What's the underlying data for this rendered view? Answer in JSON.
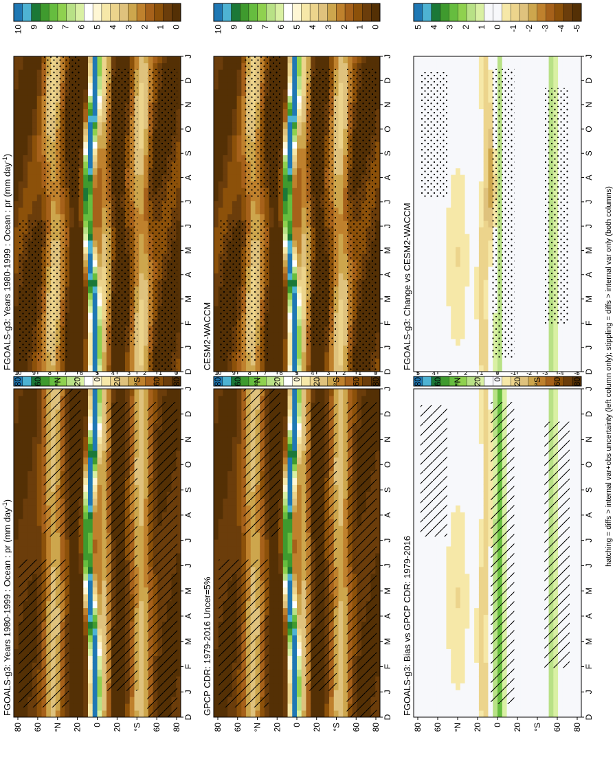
{
  "figure": {
    "footnote": "hatching = diffs > internal var+obs uncertainty (left column only); stippling = diffs > internal var only (both columns)"
  },
  "chart_data": [
    {
      "type": "heatmap",
      "panel": "left-top",
      "title": "FGOALS-g3: Years 1980-1999 : Ocean : pr",
      "title_units": "(mm day",
      "title_exp": "-1",
      "title_close": ")",
      "month_labels": [
        "D",
        "J",
        "F",
        "M",
        "A",
        "M",
        "J",
        "J",
        "A",
        "S",
        "O",
        "N",
        "D",
        "J"
      ],
      "lat_labels": [
        "80",
        "60",
        "°N",
        "20",
        "0",
        "20",
        "°S",
        "60",
        "80"
      ],
      "colorbar_labels": [
        "10",
        "9",
        "8",
        "7",
        "6",
        "5",
        "4",
        "3",
        "2",
        "1",
        "0"
      ],
      "colorbar_colors": [
        "#1f78b4",
        "#4eb3d3",
        "#1b7837",
        "#3f9a2e",
        "#66bd3f",
        "#8fd14f",
        "#b8e186",
        "#d9f0a3",
        "#ffffff",
        "#fff7d5",
        "#f6e8a8",
        "#ecd48c",
        "#dfc27d",
        "#cda64d",
        "#bf812d",
        "#a6611a",
        "#8c510a",
        "#6b3d0b",
        "#543005"
      ],
      "pattern": "hatch"
    },
    {
      "type": "heatmap",
      "panel": "right-top",
      "title": "FGOALS-g3: Years 1980-1999 : Ocean : pr",
      "title_units": "(mm day",
      "title_exp": "-1",
      "title_close": ")",
      "month_labels": [
        "D",
        "J",
        "F",
        "M",
        "A",
        "M",
        "J",
        "J",
        "A",
        "S",
        "O",
        "N",
        "D",
        "J"
      ],
      "lat_labels": [
        "80",
        "60",
        "°N",
        "20",
        "0",
        "20",
        "°S",
        "60",
        "80"
      ],
      "colorbar_labels": [
        "10",
        "9",
        "8",
        "7",
        "6",
        "5",
        "4",
        "3",
        "2",
        "1",
        "0"
      ],
      "colorbar_colors": [
        "#1f78b4",
        "#4eb3d3",
        "#1b7837",
        "#3f9a2e",
        "#66bd3f",
        "#8fd14f",
        "#b8e186",
        "#d9f0a3",
        "#ffffff",
        "#fff7d5",
        "#f6e8a8",
        "#ecd48c",
        "#dfc27d",
        "#cda64d",
        "#bf812d",
        "#a6611a",
        "#8c510a",
        "#6b3d0b",
        "#543005"
      ],
      "pattern": "stipple"
    },
    {
      "type": "heatmap",
      "panel": "left-middle",
      "title": "GPCP CDR: 1979-2016 Uncer=5%",
      "month_labels": [
        "D",
        "J",
        "F",
        "M",
        "A",
        "M",
        "J",
        "J",
        "A",
        "S",
        "O",
        "N",
        "D",
        "J"
      ],
      "lat_labels": [
        "80",
        "60",
        "°N",
        "20",
        "0",
        "20",
        "°S",
        "60",
        "80"
      ],
      "colorbar_labels": [
        "10",
        "9",
        "8",
        "7",
        "6",
        "5",
        "4",
        "3",
        "2",
        "1",
        "0"
      ],
      "colorbar_colors": [
        "#1f78b4",
        "#4eb3d3",
        "#1b7837",
        "#3f9a2e",
        "#66bd3f",
        "#8fd14f",
        "#b8e186",
        "#d9f0a3",
        "#ffffff",
        "#fff7d5",
        "#f6e8a8",
        "#ecd48c",
        "#dfc27d",
        "#cda64d",
        "#bf812d",
        "#a6611a",
        "#8c510a",
        "#6b3d0b",
        "#543005"
      ],
      "pattern": "hatch"
    },
    {
      "type": "heatmap",
      "panel": "right-middle",
      "title": "CESM2-WACCM",
      "month_labels": [
        "D",
        "J",
        "F",
        "M",
        "A",
        "M",
        "J",
        "J",
        "A",
        "S",
        "O",
        "N",
        "D",
        "J"
      ],
      "lat_labels": [
        "80",
        "60",
        "°N",
        "20",
        "0",
        "20",
        "°S",
        "60",
        "80"
      ],
      "colorbar_labels": [
        "10",
        "9",
        "8",
        "7",
        "6",
        "5",
        "4",
        "3",
        "2",
        "1",
        "0"
      ],
      "colorbar_colors": [
        "#1f78b4",
        "#4eb3d3",
        "#1b7837",
        "#3f9a2e",
        "#66bd3f",
        "#8fd14f",
        "#b8e186",
        "#d9f0a3",
        "#ffffff",
        "#fff7d5",
        "#f6e8a8",
        "#ecd48c",
        "#dfc27d",
        "#cda64d",
        "#bf812d",
        "#a6611a",
        "#8c510a",
        "#6b3d0b",
        "#543005"
      ],
      "pattern": "stipple"
    },
    {
      "type": "heatmap",
      "panel": "left-bottom",
      "title": "FGOALS-g3: Bias vs GPCP CDR: 1979-2016",
      "month_labels": [
        "D",
        "J",
        "F",
        "M",
        "A",
        "M",
        "J",
        "J",
        "A",
        "S",
        "O",
        "N",
        "D",
        "J"
      ],
      "lat_labels": [
        "80",
        "60",
        "°N",
        "20",
        "0",
        "20",
        "°S",
        "60",
        "80"
      ],
      "colorbar_labels": [
        "5",
        "4",
        "3",
        "2",
        "1",
        "0",
        "-1",
        "-2",
        "-3",
        "-4",
        "-5"
      ],
      "colorbar_colors": [
        "#1f78b4",
        "#4eb3d3",
        "#1b7837",
        "#3f9a2e",
        "#66bd3f",
        "#8fd14f",
        "#b8e186",
        "#d9f0a3",
        "#f7f8fb",
        "#f7f8fb",
        "#f6e8a8",
        "#ecd48c",
        "#dfc27d",
        "#cda64d",
        "#bf812d",
        "#a6611a",
        "#8c510a",
        "#6b3d0b",
        "#543005"
      ],
      "pattern": "hatch"
    },
    {
      "type": "heatmap",
      "panel": "right-bottom",
      "title": "FGOALS-g3: Change vs CESM2-WACCM",
      "month_labels": [
        "D",
        "J",
        "F",
        "M",
        "A",
        "M",
        "J",
        "J",
        "A",
        "S",
        "O",
        "N",
        "D",
        "J"
      ],
      "lat_labels": [
        "80",
        "60",
        "°N",
        "20",
        "0",
        "20",
        "°S",
        "60",
        "80"
      ],
      "colorbar_labels": [
        "5",
        "4",
        "3",
        "2",
        "1",
        "0",
        "-1",
        "-2",
        "-3",
        "-4",
        "-5"
      ],
      "colorbar_colors": [
        "#1f78b4",
        "#4eb3d3",
        "#1b7837",
        "#3f9a2e",
        "#66bd3f",
        "#8fd14f",
        "#b8e186",
        "#d9f0a3",
        "#f7f8fb",
        "#f7f8fb",
        "#f6e8a8",
        "#ecd48c",
        "#dfc27d",
        "#cda64d",
        "#bf812d",
        "#a6611a",
        "#8c510a",
        "#6b3d0b",
        "#543005"
      ],
      "pattern": "stipple"
    }
  ]
}
